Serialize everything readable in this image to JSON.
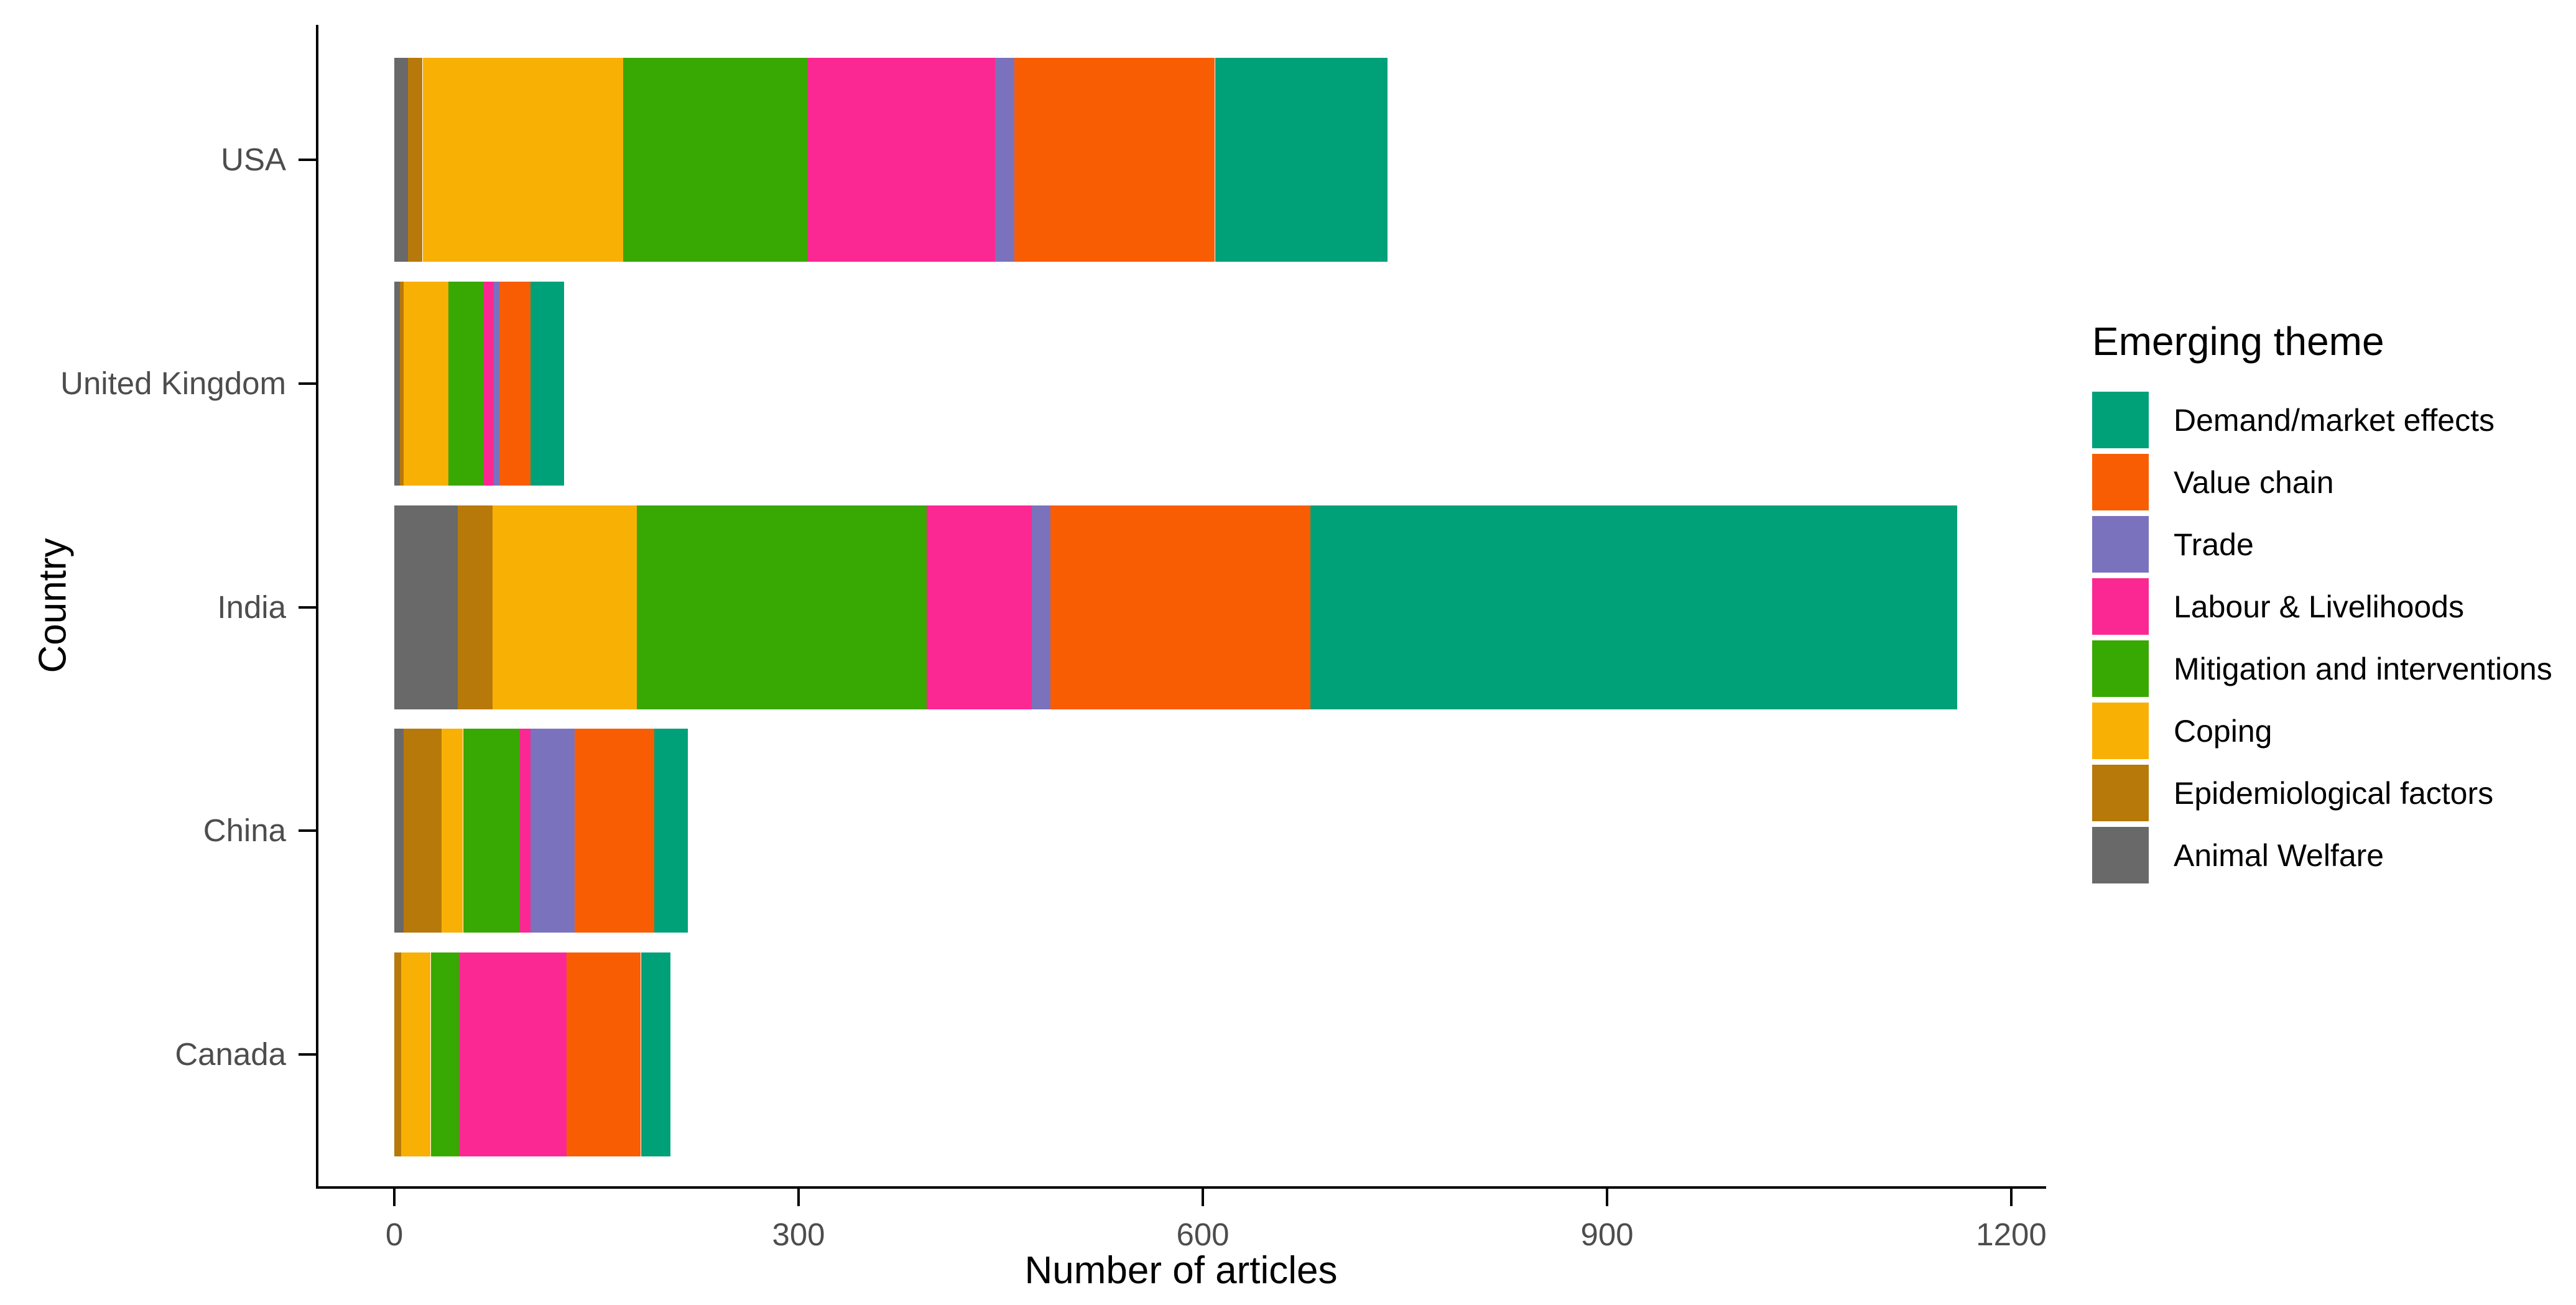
{
  "colors": {
    "background": "#FFFFFF",
    "axis_line": "#000000",
    "axis_text": "#4D4D4D",
    "title_text": "#000000"
  },
  "chart_data": {
    "type": "bar",
    "orientation": "horizontal",
    "stacked": true,
    "title": "",
    "xlabel": "Number of articles",
    "ylabel": "Country",
    "categories": [
      "USA",
      "United Kingdom",
      "India",
      "China",
      "Canada"
    ],
    "x_ticks": [
      0,
      300,
      600,
      900,
      1200
    ],
    "x_tick_labels": [
      "0",
      "300",
      "600",
      "900",
      "1200"
    ],
    "xlim": [
      0,
      1260
    ],
    "grid": "off",
    "legend_title": "Emerging theme",
    "legend_position": "right",
    "stack_order_left_to_right": [
      "Animal Welfare",
      "Epidemiological factors",
      "Coping",
      "Mitigation and interventions",
      "Labour & Livelihoods",
      "Trade",
      "Value chain",
      "Demand/market effects"
    ],
    "series": [
      {
        "name": "Demand/market effects",
        "color": "#00A078",
        "values": [
          128,
          25,
          480,
          25,
          22
        ]
      },
      {
        "name": "Value chain",
        "color": "#F85D03",
        "values": [
          149,
          23,
          193,
          59,
          55
        ]
      },
      {
        "name": "Trade",
        "color": "#7B72BD",
        "values": [
          14,
          4,
          14,
          33,
          0
        ]
      },
      {
        "name": "Labour & Livelihoods",
        "color": "#FB2893",
        "values": [
          139,
          8,
          78,
          8,
          80
        ]
      },
      {
        "name": "Mitigation and interventions",
        "color": "#38A802",
        "values": [
          137,
          26,
          215,
          42,
          21
        ]
      },
      {
        "name": "Coping",
        "color": "#F9B004",
        "values": [
          149,
          33,
          107,
          16,
          22
        ]
      },
      {
        "name": "Epidemiological factors",
        "color": "#B7790A",
        "values": [
          11,
          3,
          26,
          28,
          5
        ]
      },
      {
        "name": "Animal Welfare",
        "color": "#696969",
        "values": [
          10,
          4,
          47,
          7,
          0
        ]
      }
    ],
    "totals": [
      737,
      126,
      1160,
      218,
      205
    ]
  }
}
